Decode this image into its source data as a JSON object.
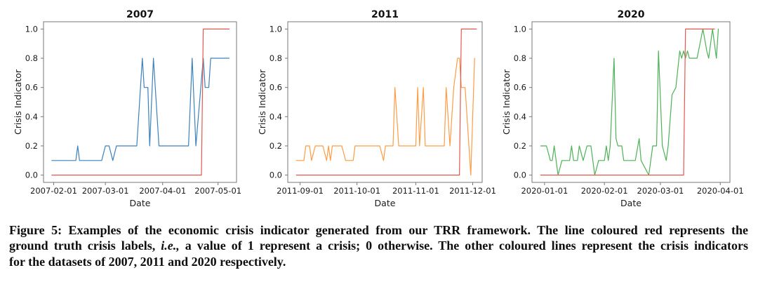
{
  "figure": {
    "caption": {
      "line1": "Figure 5: Examples of the economic crisis indicator generated from our TRR framework. The line coloured red represents the",
      "line2_pre": "ground truth crisis labels, ",
      "line2_italic": "i.e.,",
      "line2_post": " a value of 1 represent a crisis; 0 otherwise. The other coloured lines represent the crisis indicators",
      "line3": "for the datasets of 2007, 2011 and 2020 respectively."
    }
  },
  "colors": {
    "indicator_2007": "#3d81bb",
    "indicator_2011": "#ff9c45",
    "indicator_2020": "#4eb257",
    "ground_truth_red": "#e4584f",
    "spine": "#777777",
    "tick_text": "#1a1a1a"
  },
  "chart_data": [
    {
      "type": "line",
      "title": "2007",
      "xlabel": "Date",
      "ylabel": "Crisis Indicator",
      "ylim": [
        0.0,
        1.0
      ],
      "yticks": [
        "0.0",
        "0.2",
        "0.4",
        "0.6",
        "0.8",
        "1.0"
      ],
      "x_axis_unit": "days from 2007-02-01",
      "xlim_days": [
        -5.5,
        99
      ],
      "xticks": [
        {
          "label": "2007-02-01",
          "day": 0
        },
        {
          "label": "2007-03-01",
          "day": 28
        },
        {
          "label": "2007-04-01",
          "day": 59
        },
        {
          "label": "2007-05-01",
          "day": 89
        }
      ],
      "series": [
        {
          "name": "crisis-indicator-2007",
          "color": "#3d81bb",
          "points": [
            [
              -1,
              0.1
            ],
            [
              12,
              0.1
            ],
            [
              13,
              0.2
            ],
            [
              14,
              0.1
            ],
            [
              26,
              0.1
            ],
            [
              28,
              0.2
            ],
            [
              30,
              0.2
            ],
            [
              32,
              0.1
            ],
            [
              34,
              0.2
            ],
            [
              45,
              0.2
            ],
            [
              48,
              0.8
            ],
            [
              49,
              0.6
            ],
            [
              51,
              0.6
            ],
            [
              52,
              0.2
            ],
            [
              54,
              0.8
            ],
            [
              57,
              0.2
            ],
            [
              73,
              0.2
            ],
            [
              75,
              0.8
            ],
            [
              77,
              0.2
            ],
            [
              81,
              0.8
            ],
            [
              82,
              0.6
            ],
            [
              84,
              0.6
            ],
            [
              85,
              0.8
            ],
            [
              95,
              0.8
            ]
          ]
        },
        {
          "name": "ground-truth-2007",
          "color": "#e4584f",
          "points": [
            [
              -1,
              0
            ],
            [
              80,
              0
            ],
            [
              81,
              1
            ],
            [
              95,
              1
            ]
          ]
        }
      ]
    },
    {
      "type": "line",
      "title": "2011",
      "xlabel": "Date",
      "ylabel": "Crisis Indicator",
      "ylim": [
        0.0,
        1.0
      ],
      "yticks": [
        "0.0",
        "0.2",
        "0.4",
        "0.6",
        "0.8",
        "1.0"
      ],
      "x_axis_unit": "days from 2011-09-01",
      "xlim_days": [
        -6.5,
        96
      ],
      "xticks": [
        {
          "label": "2011-09-01",
          "day": 0
        },
        {
          "label": "2011-10-01",
          "day": 30
        },
        {
          "label": "2011-11-01",
          "day": 61
        },
        {
          "label": "2011-12-01",
          "day": 91
        }
      ],
      "series": [
        {
          "name": "crisis-indicator-2011",
          "color": "#ff9c45",
          "points": [
            [
              -2,
              0.1
            ],
            [
              2,
              0.1
            ],
            [
              3,
              0.2
            ],
            [
              5,
              0.2
            ],
            [
              6,
              0.1
            ],
            [
              8,
              0.2
            ],
            [
              12,
              0.2
            ],
            [
              14,
              0.1
            ],
            [
              15,
              0.2
            ],
            [
              16,
              0.1
            ],
            [
              17,
              0.2
            ],
            [
              22,
              0.2
            ],
            [
              24,
              0.1
            ],
            [
              28,
              0.1
            ],
            [
              29,
              0.2
            ],
            [
              42,
              0.2
            ],
            [
              44,
              0.1
            ],
            [
              45,
              0.2
            ],
            [
              49,
              0.2
            ],
            [
              50,
              0.6
            ],
            [
              52,
              0.2
            ],
            [
              61,
              0.2
            ],
            [
              62,
              0.6
            ],
            [
              63,
              0.2
            ],
            [
              65,
              0.6
            ],
            [
              66,
              0.2
            ],
            [
              76,
              0.2
            ],
            [
              77,
              0.6
            ],
            [
              79,
              0.2
            ],
            [
              81,
              0.6
            ],
            [
              83,
              0.8
            ],
            [
              84,
              0.8
            ],
            [
              85,
              0.6
            ],
            [
              87,
              0.6
            ],
            [
              90,
              0
            ],
            [
              92,
              0.8
            ]
          ]
        },
        {
          "name": "ground-truth-2011",
          "color": "#e4584f",
          "points": [
            [
              -2,
              0
            ],
            [
              84,
              0
            ],
            [
              85,
              1
            ],
            [
              93,
              1
            ]
          ]
        }
      ]
    },
    {
      "type": "line",
      "title": "2020",
      "xlabel": "Date",
      "ylabel": "Crisis Indicator",
      "ylim": [
        0.0,
        1.0
      ],
      "yticks": [
        "0.0",
        "0.2",
        "0.4",
        "0.6",
        "0.8",
        "1.0"
      ],
      "x_axis_unit": "days from 2020-01-01",
      "xlim_days": [
        -6.5,
        96
      ],
      "xticks": [
        {
          "label": "2020-01-01",
          "day": 0
        },
        {
          "label": "2020-02-01",
          "day": 31
        },
        {
          "label": "2020-03-01",
          "day": 60
        },
        {
          "label": "2020-04-01",
          "day": 91
        }
      ],
      "series": [
        {
          "name": "crisis-indicator-2020",
          "color": "#4eb257",
          "points": [
            [
              -2,
              0.2
            ],
            [
              1,
              0.2
            ],
            [
              3,
              0.1
            ],
            [
              4,
              0.1
            ],
            [
              5,
              0.2
            ],
            [
              7,
              0
            ],
            [
              9,
              0.1
            ],
            [
              13,
              0.1
            ],
            [
              14,
              0.2
            ],
            [
              15,
              0.1
            ],
            [
              17,
              0.1
            ],
            [
              18,
              0.2
            ],
            [
              20,
              0.1
            ],
            [
              22,
              0.2
            ],
            [
              24,
              0.2
            ],
            [
              26,
              0
            ],
            [
              28,
              0.1
            ],
            [
              31,
              0.1
            ],
            [
              32,
              0.2
            ],
            [
              33,
              0.1
            ],
            [
              34,
              0.2
            ],
            [
              36,
              0.8
            ],
            [
              37,
              0.25
            ],
            [
              38,
              0.2
            ],
            [
              40,
              0.2
            ],
            [
              41,
              0.1
            ],
            [
              47,
              0.1
            ],
            [
              49,
              0.25
            ],
            [
              50,
              0.1
            ],
            [
              52,
              0.05
            ],
            [
              54,
              0
            ],
            [
              56,
              0.2
            ],
            [
              58,
              0.2
            ],
            [
              59,
              0.85
            ],
            [
              61,
              0.2
            ],
            [
              63,
              0.1
            ],
            [
              64,
              0.2
            ],
            [
              66,
              0.55
            ],
            [
              68,
              0.6
            ],
            [
              70,
              0.85
            ],
            [
              71,
              0.8
            ],
            [
              72,
              0.85
            ],
            [
              73,
              0.8
            ],
            [
              74,
              0.85
            ],
            [
              75,
              0.8
            ],
            [
              79,
              0.8
            ],
            [
              82,
              1
            ],
            [
              84,
              0.85
            ],
            [
              85,
              0.8
            ],
            [
              87,
              1
            ],
            [
              89,
              0.8
            ],
            [
              90,
              1
            ]
          ]
        },
        {
          "name": "ground-truth-2020",
          "color": "#e4584f",
          "points": [
            [
              -2,
              0
            ],
            [
              72,
              0
            ],
            [
              73,
              1
            ],
            [
              88,
              1
            ]
          ]
        }
      ]
    }
  ]
}
